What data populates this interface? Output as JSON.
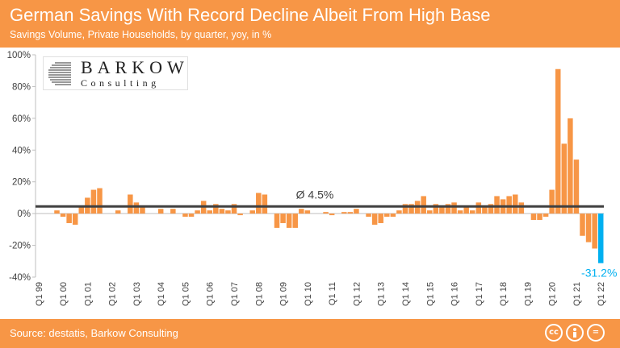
{
  "header": {
    "title": "German Savings With Record Decline Albeit From High Base",
    "subtitle": "Savings Volume, Private Households, by quarter, yoy, in %"
  },
  "footer": {
    "source": "Source: destatis, Barkow Consulting",
    "license_icons": [
      "cc",
      "by",
      "="
    ]
  },
  "logo": {
    "name": "BARKOW",
    "tagline": "Consulting"
  },
  "colors": {
    "brand": "#f79646",
    "bar": "#f79646",
    "highlight": "#00b0f0",
    "avg_line": "#404040"
  },
  "chart_data": {
    "type": "bar",
    "ylim": [
      -40,
      100
    ],
    "yticks": [
      "100%",
      "80%",
      "60%",
      "40%",
      "20%",
      "0%",
      "-20%",
      "-40%"
    ],
    "ytick_values": [
      100,
      80,
      60,
      40,
      20,
      0,
      -20,
      -40
    ],
    "xtick_labels": [
      "Q1 99",
      "Q1 00",
      "Q1 01",
      "Q1 02",
      "Q1 03",
      "Q1 04",
      "Q1 05",
      "Q1 06",
      "Q1 07",
      "Q1 08",
      "Q1 09",
      "Q1 10",
      "Q1 11",
      "Q1 12",
      "Q1 13",
      "Q1 14",
      "Q1 15",
      "Q1 16",
      "Q1 17",
      "Q1 18",
      "Q1 19",
      "Q1 20",
      "Q1 21",
      "Q1 22"
    ],
    "values": [
      0,
      0,
      0,
      2,
      -2,
      -6,
      -7,
      5,
      10,
      15,
      16,
      0,
      0,
      2,
      0,
      12,
      7,
      5,
      0,
      0,
      3,
      0,
      3,
      0,
      -2,
      -2,
      2,
      8,
      2,
      6,
      3,
      2,
      6,
      -1,
      0,
      2,
      13,
      12,
      0,
      -9,
      -6,
      -9,
      -9,
      3,
      2,
      0,
      0,
      1,
      -1,
      0,
      1,
      1,
      3,
      0,
      -2,
      -7,
      -6,
      -2,
      -2,
      2,
      6,
      6,
      8,
      11,
      2,
      6,
      5,
      6,
      7,
      2,
      4,
      2,
      7,
      5,
      6,
      11,
      9,
      11,
      12,
      7,
      0,
      -4,
      -4,
      -2,
      15,
      91,
      44,
      60,
      34,
      -14,
      -18,
      -22,
      -31.2
    ],
    "average": {
      "label": "Ø 4.5%",
      "value": 4.5
    },
    "last_label": "-31.2%",
    "grid": false
  }
}
